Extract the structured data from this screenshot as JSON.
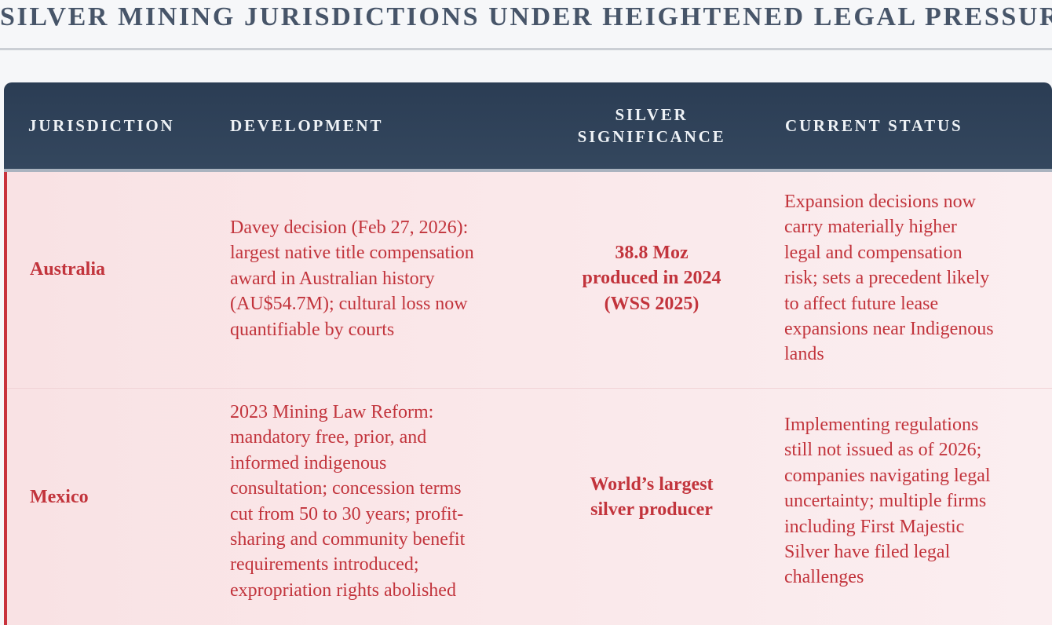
{
  "title": "SILVER MINING JURISDICTIONS UNDER HEIGHTENED LEGAL PRESSURE",
  "columns": {
    "jurisdiction": "JURISDICTION",
    "development": "DEVELOPMENT",
    "significance_line1": "SILVER",
    "significance_line2": "SIGNIFICANCE",
    "status": "CURRENT STATUS"
  },
  "colors": {
    "header_bg": "#2b3d54",
    "accent": "#c8333c",
    "row_text": "#c2343c",
    "title_text": "#475569"
  },
  "rows": [
    {
      "jurisdiction": "Australia",
      "development": [
        "Davey decision (Feb 27, 2026):",
        "largest native title compensation",
        "award in Australian history",
        "(AU$54.7M); cultural loss now",
        "quantifiable by courts"
      ],
      "significance": [
        "38.8 Moz",
        "produced in 2024",
        "(WSS 2025)"
      ],
      "status": [
        "Expansion decisions now",
        "carry materially higher",
        "legal and compensation",
        "risk; sets a precedent likely",
        "to affect future lease",
        "expansions near Indigenous",
        "lands"
      ]
    },
    {
      "jurisdiction": "Mexico",
      "development": [
        "2023 Mining Law Reform:",
        "mandatory free, prior, and",
        "informed indigenous",
        "consultation; concession terms",
        "cut from 50 to 30 years; profit-",
        "sharing and community benefit",
        "requirements introduced;",
        "expropriation rights abolished"
      ],
      "significance": [
        "World’s largest",
        "silver producer"
      ],
      "status": [
        "Implementing regulations",
        "still not issued as of 2026;",
        "companies navigating legal",
        "uncertainty; multiple firms",
        "including First Majestic",
        "Silver have filed legal",
        "challenges"
      ]
    }
  ]
}
